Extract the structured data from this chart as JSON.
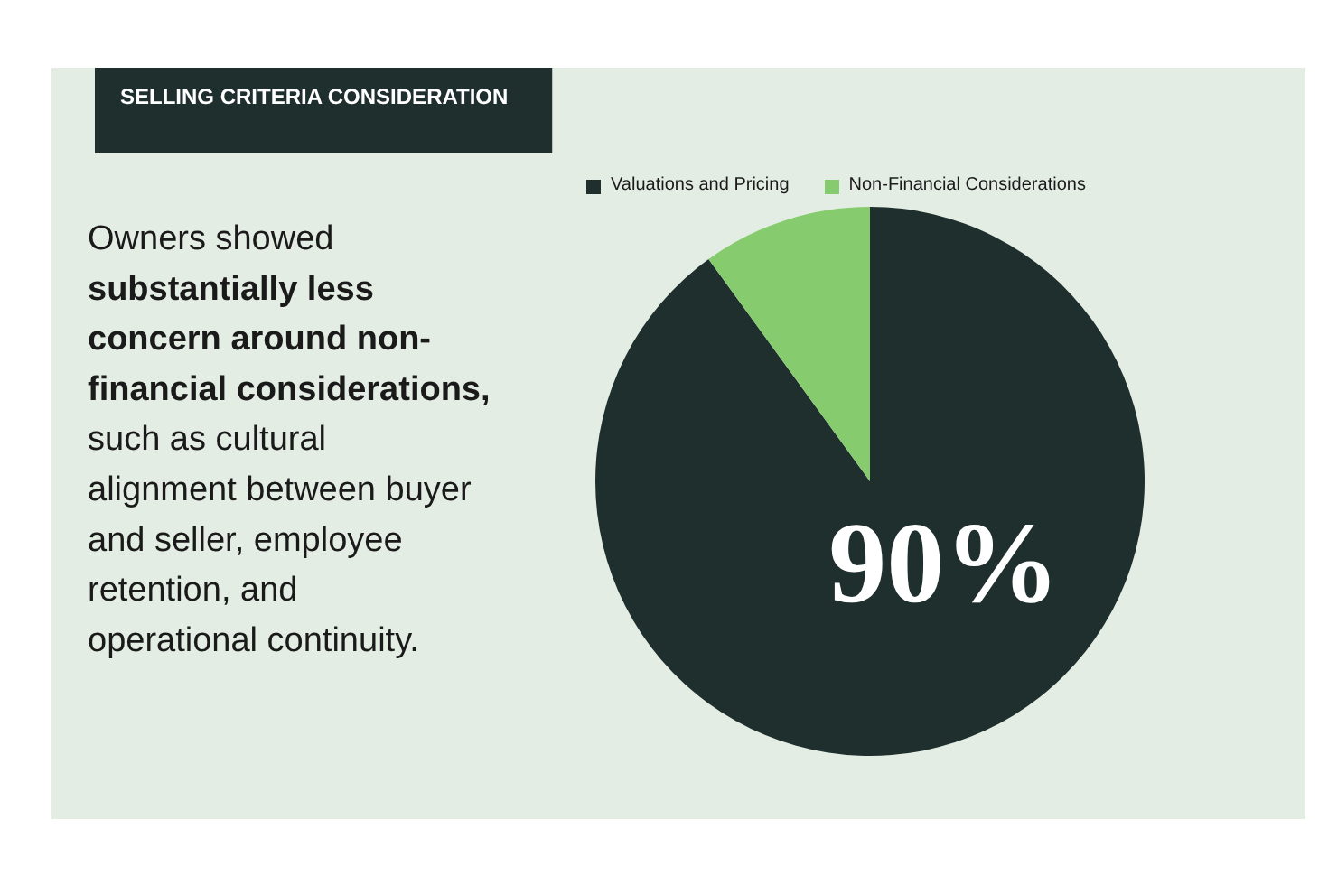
{
  "chart_data": {
    "type": "pie",
    "title": "SELLING CRITERIA CONSIDERATION",
    "categories": [
      "Valuations and Pricing",
      "Non-Financial Considerations"
    ],
    "values": [
      90,
      10
    ],
    "colors": [
      "#1f2f2e",
      "#86cc6e"
    ],
    "value_labels": [
      "90%",
      null
    ],
    "legend": "top",
    "annotations": [
      "Owners showed",
      "substantially less concern around non-financial considerations,",
      "such as cultural alignment between buyer and seller, employee retention, and operational continuity."
    ]
  }
}
